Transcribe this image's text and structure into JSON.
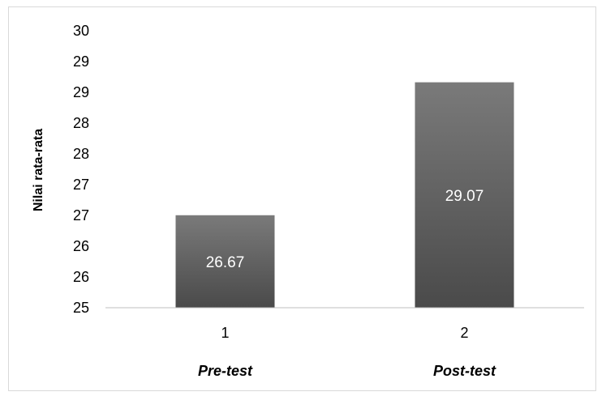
{
  "chart_data": {
    "type": "bar",
    "categories": [
      "1",
      "2"
    ],
    "category_labels": [
      "Pre-test",
      "Post-test"
    ],
    "values": [
      26.67,
      29.07
    ],
    "data_labels": [
      "26.67",
      "29.07"
    ],
    "ylabel": "Nilai rata-rata",
    "xlabel": "",
    "ylim": [
      25,
      30
    ],
    "y_tick_labels": [
      "25",
      "26",
      "26",
      "27",
      "27",
      "28",
      "28",
      "29",
      "29",
      "30"
    ],
    "grid": false,
    "legend": "none",
    "bar_color_top": "#7a7a7a",
    "bar_color_bottom": "#4a4a4a"
  }
}
